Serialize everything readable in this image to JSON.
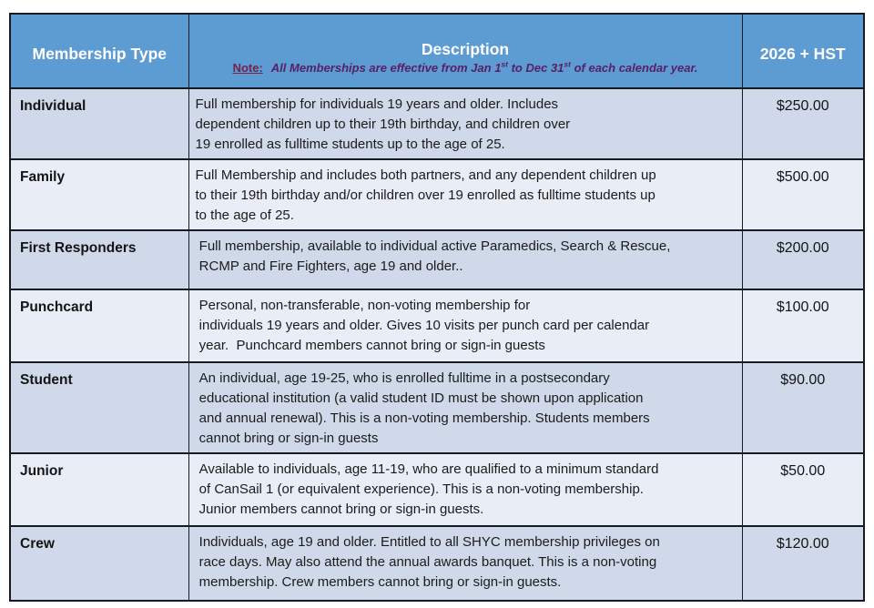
{
  "table": {
    "header": {
      "membership_type": "Membership Type",
      "description": "Description",
      "price_column": "2026 + HST",
      "note": {
        "label": "Note:",
        "part1": "All Memberships are effective from Jan 1",
        "sup1": "st",
        "part2": " to Dec 31",
        "sup2": "st",
        "part3": " of each calendar year."
      }
    },
    "rows": [
      {
        "type": "Individual",
        "description": "Full membership for individuals 19 years and older. Includes\ndependent children up to their 19th birthday, and children over\n19 enrolled as fulltime students up to the age of 25.",
        "price": "$250.00"
      },
      {
        "type": "Family",
        "description": "Full Membership and includes both partners, and any dependent children up\nto their 19th birthday and/or children over 19 enrolled as fulltime students up\nto the age of 25.",
        "price": "$500.00"
      },
      {
        "type": "First Responders",
        "description": " Full membership, available to individual active Paramedics, Search & Rescue,\n RCMP and Fire Fighters, age 19 and older..",
        "price": "$200.00"
      },
      {
        "type": "Punchcard",
        "description": " Personal, non-transferable, non-voting membership for\n individuals 19 years and older. Gives 10 visits per punch card per calendar\n year.  Punchcard members cannot bring or sign-in guests",
        "price": "$100.00"
      },
      {
        "type": "Student",
        "description": " An individual, age 19-25, who is enrolled fulltime in a postsecondary\n educational institution (a valid student ID must be shown upon application\n and annual renewal). This is a non-voting membership. Students members\n cannot bring or sign-in guests",
        "price": "$90.00"
      },
      {
        "type": "Junior",
        "description": " Available to individuals, age 11-19, who are qualified to a minimum standard\n of CanSail 1 (or equivalent experience). This is a non-voting membership.\n Junior members cannot bring or sign-in guests.",
        "price": "$50.00"
      },
      {
        "type": "Crew",
        "description": " Individuals, age 19 and older. Entitled to all SHYC membership privileges on\n race days. May also attend the annual awards banquet. This is a non-voting\n membership. Crew members cannot bring or sign-in guests.",
        "price": "$120.00"
      }
    ],
    "colors": {
      "header_bg": "#5d9bd3",
      "header_text": "#ffffff",
      "row_dark_bg": "#cfd9e9",
      "row_light_bg": "#e9edf5",
      "border": "#161a22",
      "note_label": "#76204a",
      "note_text": "#581f63"
    }
  }
}
